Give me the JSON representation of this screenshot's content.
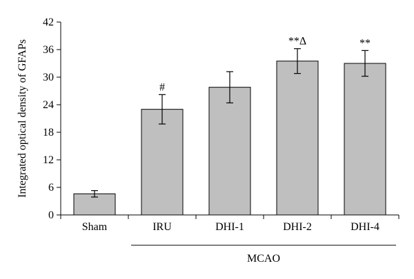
{
  "chart_data": {
    "type": "bar",
    "ylabel": "Integrated optical density of GFAPs",
    "xlabel": "",
    "ylim": [
      0,
      42
    ],
    "yticks": [
      0,
      6,
      12,
      18,
      24,
      30,
      36,
      42
    ],
    "categories": [
      "Sham",
      "IRU",
      "DHI-1",
      "DHI-2",
      "DHI-4"
    ],
    "values": [
      4.6,
      23.0,
      27.8,
      33.5,
      33.0
    ],
    "errors": [
      0.7,
      3.2,
      3.4,
      2.7,
      2.8
    ],
    "annotations": [
      "",
      "#",
      "",
      "**Δ",
      "**"
    ],
    "group": {
      "label": "MCAO",
      "from_category": "IRU",
      "to_category": "DHI-4"
    },
    "bar_color": "#bfbfbf",
    "grid": false
  }
}
